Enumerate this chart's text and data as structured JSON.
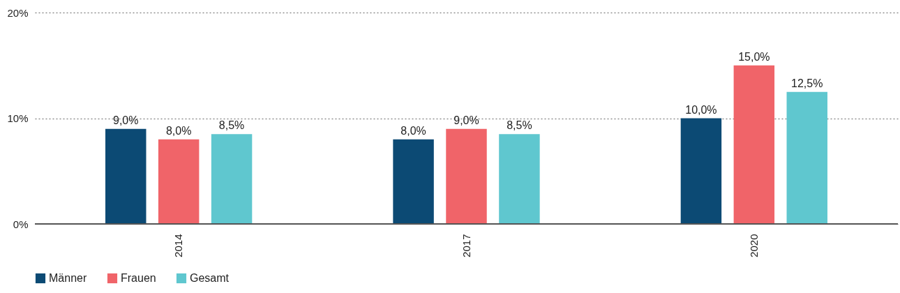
{
  "chart_data": {
    "type": "bar",
    "categories": [
      "2014",
      "2017",
      "2020"
    ],
    "series": [
      {
        "name": "Männer",
        "color": "#0c4a74",
        "values": [
          9,
          8,
          10
        ],
        "value_labels": [
          "9,0%",
          "8,0%",
          "10,0%"
        ]
      },
      {
        "name": "Frauen",
        "color": "#f06469",
        "values": [
          8,
          9,
          15
        ],
        "value_labels": [
          "8,0%",
          "9,0%",
          "15,0%"
        ]
      },
      {
        "name": "Gesamt",
        "color": "#5fc7cf",
        "values": [
          8.5,
          8.5,
          12.5
        ],
        "value_labels": [
          "8,5%",
          "8,5%",
          "12,5%"
        ]
      }
    ],
    "ylim": [
      0,
      20
    ],
    "yticks": [
      {
        "value": 0,
        "label": "0%"
      },
      {
        "value": 10,
        "label": "10%"
      },
      {
        "value": 20,
        "label": "20%"
      }
    ],
    "grid": "y",
    "legend": "bottom"
  }
}
